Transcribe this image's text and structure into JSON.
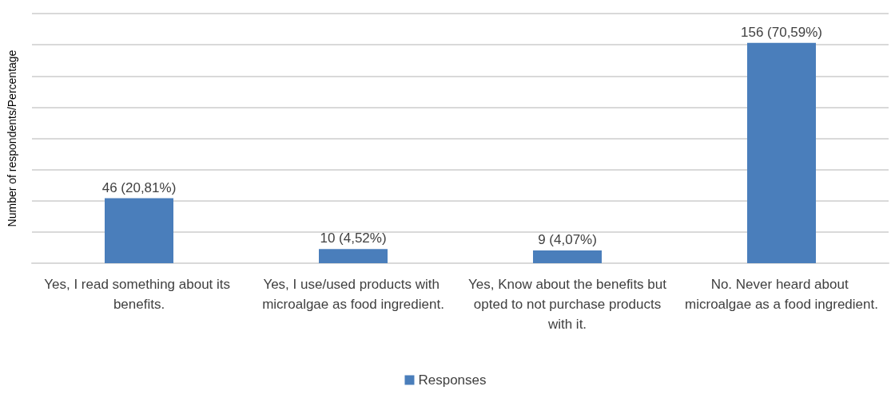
{
  "chart_data": {
    "type": "bar",
    "ylabel": "Number of respondents/Percentage",
    "categories": [
      "Yes, I read something about its benefits.",
      "Yes, I use/used products with microalgae as food ingredient.",
      "Yes, Know about the benefits but opted to not purchase products with it.",
      "No. Never heard about microalgae as a food ingredient."
    ],
    "series": [
      {
        "name": "Responses",
        "color": "#4a7ebb",
        "values": [
          20.81,
          4.52,
          4.07,
          70.59
        ],
        "value_labels": [
          "46 (20,81%)",
          "10 (4,52%)",
          "9 (4,07%)",
          "156 (70,59%)"
        ]
      }
    ],
    "ylim": [
      0,
      80
    ],
    "yticks": [
      {
        "value": 0,
        "label": null
      },
      {
        "value": 10,
        "label": null
      },
      {
        "value": 20,
        "label": null
      },
      {
        "value": 30,
        "label": null
      },
      {
        "value": 40,
        "label": null
      },
      {
        "value": 50,
        "label": null
      },
      {
        "value": 60,
        "label": null
      },
      {
        "value": 70,
        "label": null
      },
      {
        "value": 80,
        "label": null
      }
    ],
    "grid": "y",
    "legend": "bottom",
    "tick_labels": "x"
  }
}
